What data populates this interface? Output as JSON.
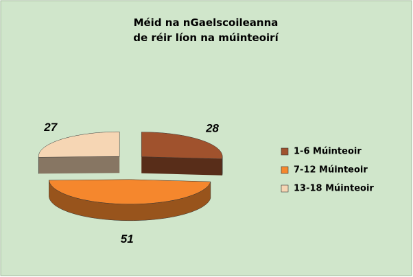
{
  "chart_data": {
    "type": "pie",
    "title": "Méid na nGaelscoileanna\nde réir líon na múinteoirí",
    "categories": [
      "1-6 Múinteoir",
      "7-12 Múinteoir",
      "13-18 Múinteoir"
    ],
    "values": [
      28,
      51,
      27
    ],
    "colors": [
      "#a0522d",
      "#f5872d",
      "#f6d6b4"
    ],
    "legend": "right"
  }
}
